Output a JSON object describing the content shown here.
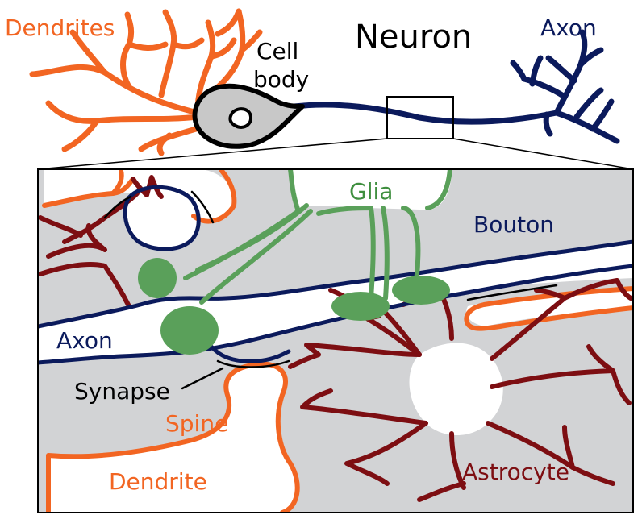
{
  "title": "Neuron",
  "labels": {
    "dendrites": "Dendrites",
    "cell_body_line1": "Cell",
    "cell_body_line2": "body",
    "axon_top": "Axon",
    "glia": "Glia",
    "bouton": "Bouton",
    "axon_inset": "Axon",
    "synapse": "Synapse",
    "spine": "Spine",
    "dendrite": "Dendrite",
    "astrocyte": "Astrocyte"
  },
  "colors": {
    "dendrite_orange": "#f26522",
    "axon_navy": "#0b1a5c",
    "glia_green": "#5aa05a",
    "astrocyte_maroon": "#7d0e12",
    "inset_background": "#d2d3d5",
    "cell_body_fill": "#c8c8c8"
  }
}
